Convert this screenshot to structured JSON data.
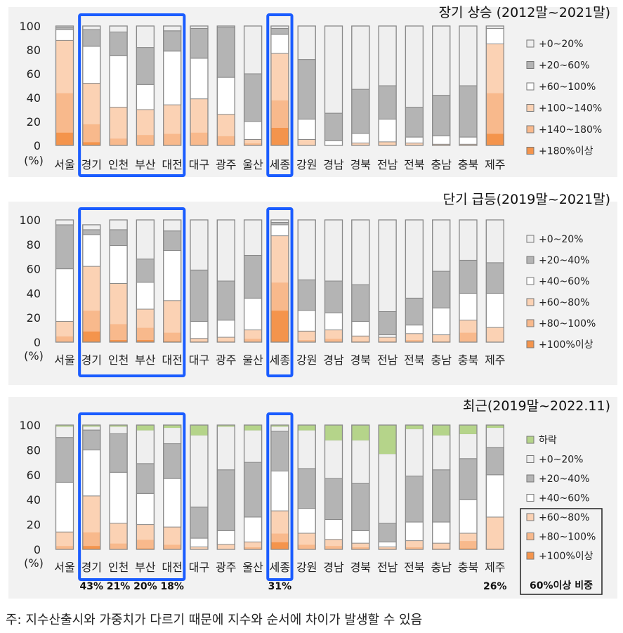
{
  "chart_data": [
    {
      "type": "bar",
      "stacked": true,
      "title": "장기 상승 (2012말~2021말)",
      "ylabel": "(%)",
      "ylim": [
        0,
        100
      ],
      "yticks": [
        "0",
        "20",
        "40",
        "60",
        "80",
        "100"
      ],
      "categories": [
        "서울",
        "경기",
        "인천",
        "부산",
        "대전",
        "대구",
        "광주",
        "울산",
        "세종",
        "강원",
        "경남",
        "경북",
        "전남",
        "전북",
        "충남",
        "충북",
        "제주"
      ],
      "legend_position": "right",
      "series": [
        {
          "name": "+180%이상",
          "color": "#f4944c",
          "values": [
            11,
            3,
            0,
            0,
            0,
            0,
            0,
            0,
            15,
            0,
            0,
            0,
            0,
            0,
            0,
            0,
            10
          ]
        },
        {
          "name": "+140~180%",
          "color": "#f8b98c",
          "values": [
            33,
            15,
            6,
            9,
            10,
            11,
            8,
            2,
            23,
            0,
            0,
            0,
            0,
            0,
            0,
            0,
            34
          ]
        },
        {
          "name": "+100~140%",
          "color": "#fbd2b4",
          "values": [
            44,
            34,
            26,
            21,
            24,
            28,
            18,
            3,
            39,
            5,
            0,
            2,
            3,
            2,
            1,
            1,
            41
          ]
        },
        {
          "name": "+60~100%",
          "color": "#ffffff",
          "values": [
            9,
            31,
            43,
            21,
            45,
            34,
            31,
            15,
            16,
            17,
            4,
            8,
            19,
            5,
            7,
            6,
            13
          ]
        },
        {
          "name": "+20~60%",
          "color": "#b4b4b4",
          "values": [
            2,
            14,
            20,
            31,
            17,
            25,
            42,
            40,
            5,
            50,
            23,
            37,
            28,
            25,
            34,
            43,
            0
          ]
        },
        {
          "name": "+0~20%",
          "color": "#efefef",
          "values": [
            1,
            3,
            5,
            18,
            4,
            2,
            1,
            40,
            2,
            28,
            73,
            53,
            50,
            68,
            58,
            50,
            2
          ]
        }
      ],
      "highlighted_categories": [
        "경기",
        "인천",
        "부산",
        "대전",
        "세종"
      ]
    },
    {
      "type": "bar",
      "stacked": true,
      "title": "단기 급등(2019말~2021말)",
      "ylabel": "(%)",
      "ylim": [
        0,
        100
      ],
      "yticks": [
        "0",
        "20",
        "40",
        "60",
        "80",
        "100"
      ],
      "categories": [
        "서울",
        "경기",
        "인천",
        "부산",
        "대전",
        "대구",
        "광주",
        "울산",
        "세종",
        "강원",
        "경남",
        "경북",
        "전남",
        "전북",
        "충남",
        "충북",
        "제주"
      ],
      "legend_position": "right",
      "series": [
        {
          "name": "+100%이상",
          "color": "#f4944c",
          "values": [
            0,
            9,
            2,
            2,
            1,
            0,
            0,
            0,
            26,
            0,
            0,
            0,
            0,
            0,
            0,
            0,
            0
          ]
        },
        {
          "name": "+80~100%",
          "color": "#f8b98c",
          "values": [
            5,
            17,
            13,
            10,
            7,
            1,
            1,
            3,
            23,
            2,
            3,
            1,
            1,
            2,
            1,
            8,
            0
          ]
        },
        {
          "name": "+60~80%",
          "color": "#fbd2b4",
          "values": [
            12,
            36,
            33,
            15,
            26,
            2,
            3,
            7,
            38,
            7,
            7,
            4,
            3,
            5,
            5,
            10,
            12
          ]
        },
        {
          "name": "+40~60%",
          "color": "#ffffff",
          "values": [
            43,
            26,
            31,
            22,
            41,
            14,
            14,
            26,
            9,
            17,
            14,
            12,
            2,
            7,
            22,
            22,
            28
          ]
        },
        {
          "name": "+20~40%",
          "color": "#b4b4b4",
          "values": [
            36,
            4,
            13,
            19,
            16,
            42,
            32,
            35,
            2,
            25,
            26,
            30,
            19,
            22,
            30,
            27,
            25
          ]
        },
        {
          "name": "+0~20%",
          "color": "#efefef",
          "values": [
            4,
            4,
            8,
            32,
            9,
            41,
            50,
            29,
            2,
            49,
            50,
            53,
            75,
            64,
            42,
            33,
            35
          ]
        }
      ],
      "highlighted_categories": [
        "경기",
        "인천",
        "부산",
        "대전",
        "세종"
      ]
    },
    {
      "type": "bar",
      "stacked": true,
      "title": "최근(2019말~2022.11)",
      "ylabel": "(%)",
      "ylim": [
        0,
        100
      ],
      "yticks": [
        "0",
        "20",
        "40",
        "60",
        "80",
        "100"
      ],
      "categories": [
        "서울",
        "경기",
        "인천",
        "부산",
        "대전",
        "대구",
        "광주",
        "울산",
        "세종",
        "강원",
        "경남",
        "경북",
        "전남",
        "전북",
        "충남",
        "충북",
        "제주"
      ],
      "legend_position": "right",
      "series": [
        {
          "name": "+100%이상",
          "color": "#f4944c",
          "values": [
            0,
            3,
            0,
            1,
            0,
            0,
            0,
            0,
            6,
            0,
            0,
            0,
            0,
            0,
            0,
            1,
            0
          ]
        },
        {
          "name": "+80~100%",
          "color": "#f8b98c",
          "values": [
            3,
            11,
            5,
            7,
            4,
            0,
            0,
            2,
            7,
            4,
            3,
            2,
            1,
            2,
            1,
            6,
            1
          ]
        },
        {
          "name": "+60~80%",
          "color": "#fbd2b4",
          "values": [
            11,
            29,
            16,
            12,
            14,
            2,
            4,
            4,
            18,
            9,
            5,
            3,
            1,
            5,
            4,
            6,
            25
          ]
        },
        {
          "name": "+40~60%",
          "color": "#ffffff",
          "values": [
            40,
            37,
            41,
            25,
            39,
            7,
            11,
            20,
            32,
            20,
            16,
            10,
            4,
            15,
            17,
            27,
            34
          ]
        },
        {
          "name": "+20~40%",
          "color": "#b4b4b4",
          "values": [
            36,
            16,
            31,
            24,
            28,
            25,
            49,
            44,
            32,
            32,
            33,
            38,
            15,
            37,
            42,
            33,
            22
          ]
        },
        {
          "name": "+0~20%",
          "color": "#efefef",
          "values": [
            9,
            3,
            6,
            27,
            13,
            58,
            35,
            26,
            4,
            31,
            31,
            35,
            56,
            38,
            28,
            20,
            16
          ]
        },
        {
          "name": "하락",
          "color": "#b5d48a",
          "values": [
            1,
            1,
            1,
            4,
            2,
            8,
            1,
            4,
            1,
            4,
            12,
            12,
            23,
            3,
            8,
            7,
            2
          ]
        }
      ],
      "highlighted_categories": [
        "경기",
        "인천",
        "부산",
        "대전",
        "세종"
      ],
      "annotations": [
        {
          "category": "경기",
          "text": "43%"
        },
        {
          "category": "인천",
          "text": "21%"
        },
        {
          "category": "부산",
          "text": "20%"
        },
        {
          "category": "대전",
          "text": "18%"
        },
        {
          "category": "세종",
          "text": "31%"
        },
        {
          "category": "제주",
          "text": "26%"
        }
      ],
      "legend_note": "60%이상 비중"
    }
  ],
  "footnote": "주: 지수산출시와 가중치가 다르기 때문에 지수와 순서에 차이가 발생할 수 있음"
}
